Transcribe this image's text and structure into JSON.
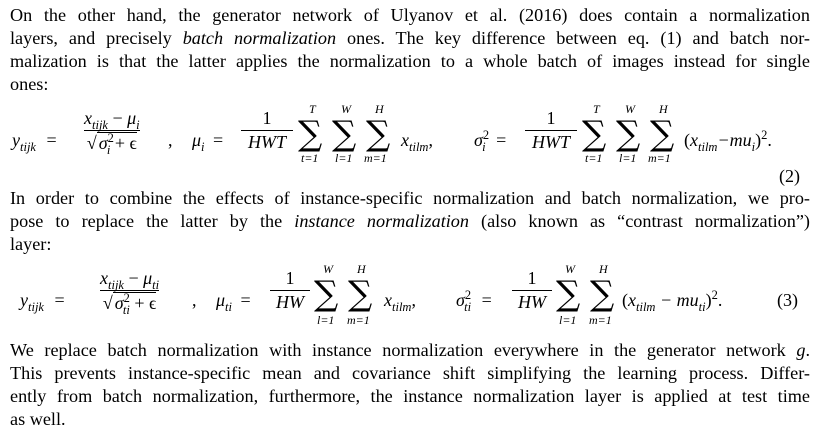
{
  "paragraphs": {
    "p1": {
      "lines": [
        "On the other hand, the generator network of Ulyanov et al. (2016) does contain a normalization",
        "layers, and precisely ",
        "ones. The key difference between eq. (1) and batch nor-",
        "malization is that the latter applies the normalization to a whole batch of images instead for single",
        "ones:"
      ],
      "emph": "batch normalization"
    },
    "p2": {
      "line1": "In order to combine the effects of instance-specific normalization and batch normalization, we pro-",
      "line2_a": "pose to replace the latter by the ",
      "line2_emph": "instance normalization",
      "line2_b": " (also known as “contrast normalization”)",
      "line3": "layer:"
    },
    "p3": {
      "lines": [
        "We replace batch normalization with instance normalization everywhere in the generator network ",
        "This prevents instance-specific mean and covariance shift simplifying the learning process. Differ-",
        "ently from batch normalization, furthermore, the instance normalization layer is applied at test time",
        "as well."
      ],
      "g": "g",
      "period": "."
    }
  },
  "equations": {
    "eq2": {
      "number": "(2)",
      "y_lhs": "y",
      "y_sub": "tijk",
      "eq": "=",
      "x_num": "x",
      "x_num_sub": "tijk",
      "minus": "−",
      "mu": "μ",
      "mu_sub": "i",
      "sqrt_sigma": "σ",
      "sqrt_sigma_sub": "i",
      "sqrt_sigma_sup": "2",
      "plus_eps": "+ ϵ",
      "comma": ",",
      "one": "1",
      "hwt": "HWT",
      "x_sum": "x",
      "x_sum_sub": "tilm",
      "sum_limits": [
        "T",
        "W",
        "H"
      ],
      "sum_lower": [
        "t=1",
        "l=1",
        "m=1"
      ],
      "sigma_lhs": "σ",
      "sigma_lhs_sub": "i",
      "sigma_lhs_sup": "2",
      "tail_open": "(",
      "tail_x": "x",
      "tail_x_sub": "tilm",
      "tail_minus_mu": "−mu",
      "tail_mu_sub": "i",
      "tail_close": ")",
      "tail_sup": "2",
      "tail_end": "."
    },
    "eq3": {
      "number": "(3)",
      "y_lhs": "y",
      "y_sub": "tijk",
      "eq": "=",
      "x_num": "x",
      "x_num_sub": "tijk",
      "minus": "−",
      "mu": "μ",
      "mu_sub": "ti",
      "sqrt_sigma": "σ",
      "sqrt_sigma_sub": "ti",
      "sqrt_sigma_sup": "2",
      "plus_eps": "+ ϵ",
      "comma": ",",
      "one": "1",
      "hw": "HW",
      "x_sum": "x",
      "x_sum_sub": "tilm",
      "sum_limits": [
        "W",
        "H"
      ],
      "sum_lower": [
        "l=1",
        "m=1"
      ],
      "sigma_lhs": "σ",
      "sigma_lhs_sub": "ti",
      "sigma_lhs_sup": "2",
      "tail_open": "(",
      "tail_x": "x",
      "tail_x_sub": "tilm",
      "tail_minus_mu": "− mu",
      "tail_mu_sub": "ti",
      "tail_close": ")",
      "tail_sup": "2",
      "tail_end": "."
    }
  }
}
